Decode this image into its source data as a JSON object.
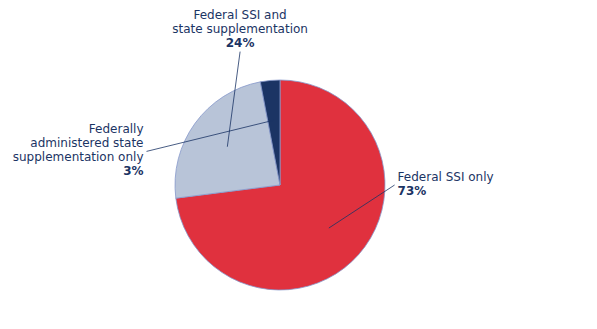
{
  "chart_data": {
    "type": "pie",
    "categories": [
      "Federal SSI only",
      "Federal SSI and\nstate supplementation",
      "Federally\nadministered state\nsupplementation only"
    ],
    "values": [
      73,
      24,
      3
    ],
    "value_labels": [
      "73%",
      "24%",
      "3%"
    ],
    "colors": [
      "#e0313e",
      "#b8c4d8",
      "#1b3464"
    ],
    "data_labels": true
  }
}
